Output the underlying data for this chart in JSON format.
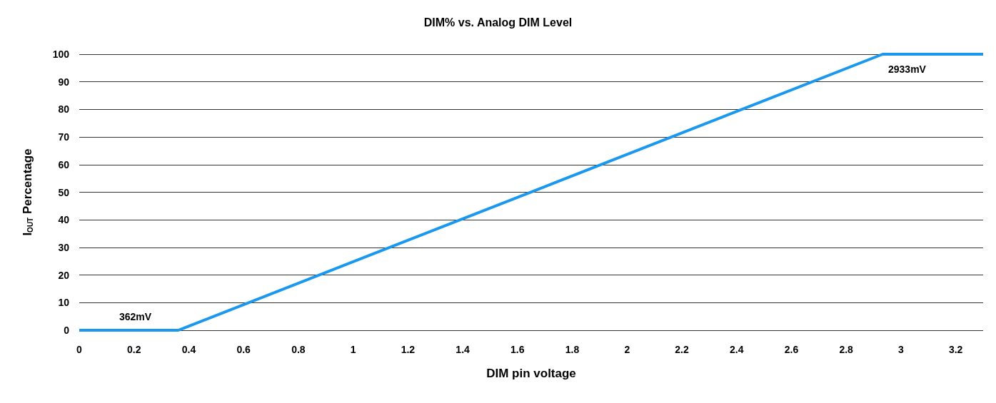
{
  "chart_data": {
    "type": "line",
    "title": "DIM% vs. Analog DIM Level",
    "xlabel": "DIM pin voltage",
    "ylabel": "I$_{OUT}$ Percentage",
    "x": [
      0,
      0.362,
      2.933,
      3.3
    ],
    "series": [
      {
        "color": "#1a98f0",
        "values": [
          0,
          0,
          100,
          100
        ]
      }
    ],
    "xlim": [
      0,
      3.3
    ],
    "xticks": [
      0,
      0.2,
      0.4,
      0.6,
      0.8,
      1,
      1.2,
      1.4,
      1.6,
      1.8,
      2,
      2.2,
      2.4,
      2.6,
      2.8,
      3,
      3.2
    ],
    "ylim": [
      0,
      100
    ],
    "yticks": [
      0,
      10,
      20,
      30,
      40,
      50,
      60,
      70,
      80,
      90,
      100
    ],
    "annotations": [
      "362mV",
      "2933mV"
    ],
    "grid": "y",
    "marker": "none",
    "line_style": "solid"
  }
}
